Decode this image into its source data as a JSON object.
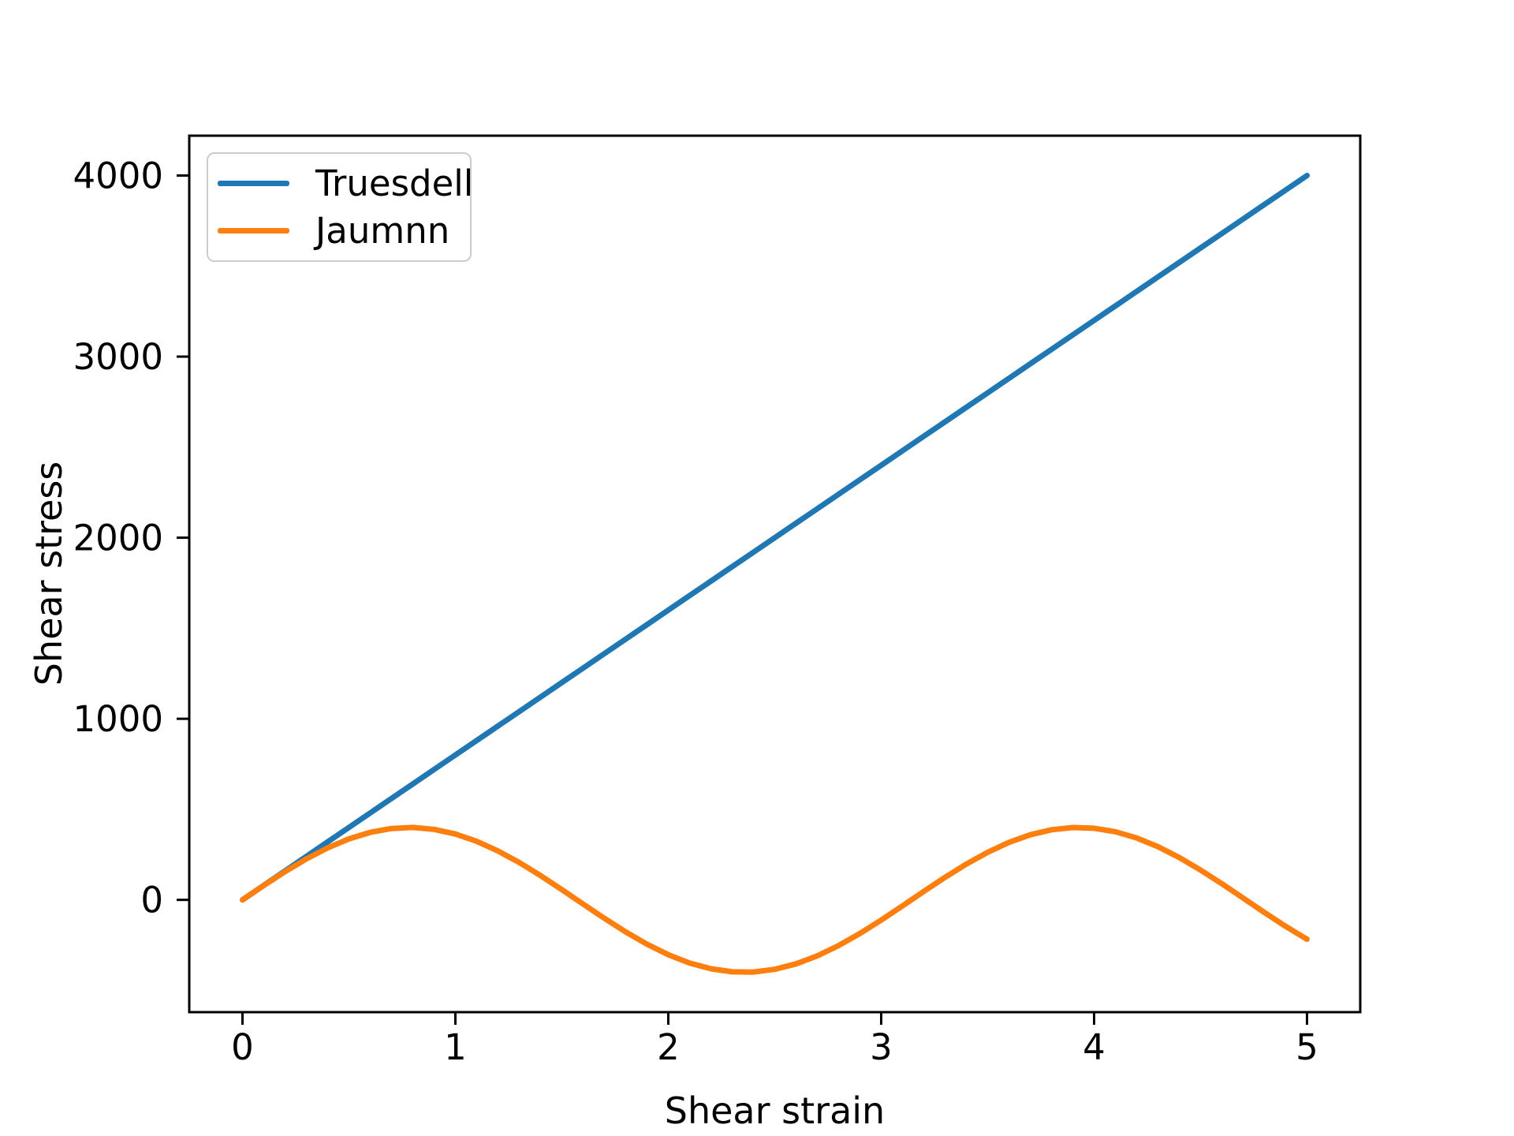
{
  "figure": {
    "background_color": "#ffffff",
    "text_color": "#000000",
    "spine_color": "#000000"
  },
  "chart_data": {
    "type": "line",
    "title": "",
    "xlabel": "Shear strain",
    "ylabel": "Shear stress",
    "xlim": [
      -0.25,
      5.25
    ],
    "ylim": [
      -620,
      4220
    ],
    "xticks": [
      0,
      1,
      2,
      3,
      4,
      5
    ],
    "yticks": [
      0,
      1000,
      2000,
      3000,
      4000
    ],
    "grid": false,
    "legend_position": "upper left",
    "x": [
      0,
      0.1,
      0.2,
      0.3,
      0.4,
      0.5,
      0.6,
      0.7,
      0.8,
      0.9,
      1.0,
      1.1,
      1.2,
      1.3,
      1.4,
      1.5,
      1.6,
      1.7,
      1.8,
      1.9,
      2.0,
      2.1,
      2.2,
      2.3,
      2.4,
      2.5,
      2.6,
      2.7,
      2.8,
      2.9,
      3.0,
      3.1,
      3.2,
      3.3,
      3.4,
      3.5,
      3.6,
      3.7,
      3.8,
      3.9,
      4.0,
      4.1,
      4.2,
      4.3,
      4.4,
      4.5,
      4.6,
      4.7,
      4.8,
      4.9,
      5.0
    ],
    "series": [
      {
        "name": "Truesdell",
        "color": "#1f77b4",
        "values": [
          0,
          80,
          160,
          240,
          320,
          400,
          480,
          560,
          640,
          720,
          800,
          880,
          960,
          1040,
          1120,
          1200,
          1280,
          1360,
          1440,
          1520,
          1600,
          1680,
          1760,
          1840,
          1920,
          2000,
          2080,
          2160,
          2240,
          2320,
          2400,
          2480,
          2560,
          2640,
          2720,
          2800,
          2880,
          2960,
          3040,
          3120,
          3200,
          3280,
          3360,
          3440,
          3520,
          3600,
          3680,
          3760,
          3840,
          3920,
          4000
        ]
      },
      {
        "name": "Jaumnn",
        "color": "#ff7f0e",
        "values": [
          0,
          79.5,
          155.8,
          225.9,
          286.9,
          336.6,
          372.8,
          394.2,
          399.8,
          389.5,
          363.7,
          323.4,
          270.2,
          206.2,
          134.0,
          56.4,
          -23.3,
          -102.2,
          -177.0,
          -244.7,
          -302.7,
          -348.6,
          -380.6,
          -397.5,
          -398.5,
          -383.6,
          -353.4,
          -309.1,
          -252.5,
          -185.8,
          -111.8,
          -33.2,
          46.6,
          124.6,
          197.6,
          262.8,
          317.5,
          359.5,
          387.2,
          399.4,
          395.7,
          376.3,
          341.8,
          293.8,
          234.0,
          164.8,
          89.2,
          9.9,
          -69.7,
          -146.6,
          -217.6
        ]
      }
    ]
  }
}
